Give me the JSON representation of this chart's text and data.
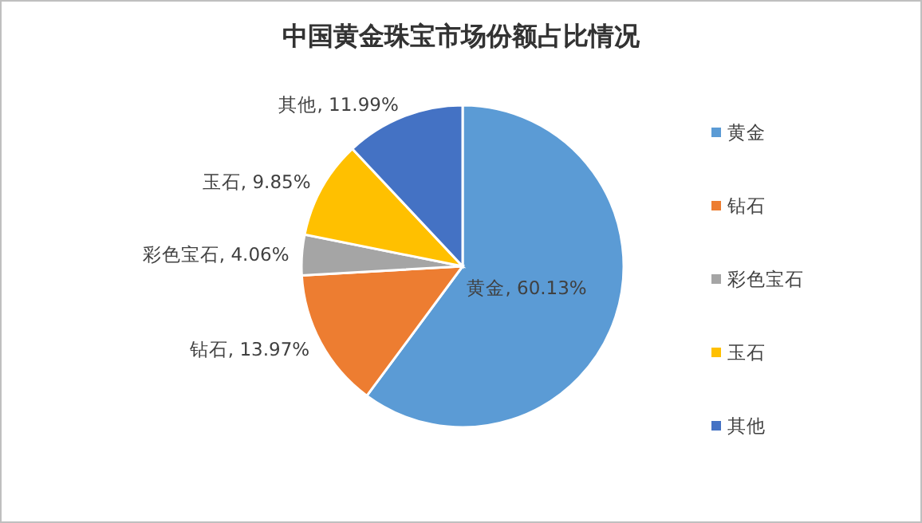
{
  "chart_data": {
    "type": "pie",
    "title": "中国黄金珠宝市场份额占比情况",
    "categories": [
      "黄金",
      "钻石",
      "彩色宝石",
      "玉石",
      "其他"
    ],
    "values": [
      60.13,
      13.97,
      4.06,
      9.85,
      11.99
    ],
    "colors": [
      "#5b9bd5",
      "#ed7d31",
      "#a5a5a5",
      "#ffc000",
      "#4472c4"
    ],
    "value_labels": [
      "黄金, 60.13%",
      "钻石, 13.97%",
      "彩色宝石, 4.06%",
      "玉石, 9.85%",
      "其他, 11.99%"
    ],
    "legend": "right"
  }
}
